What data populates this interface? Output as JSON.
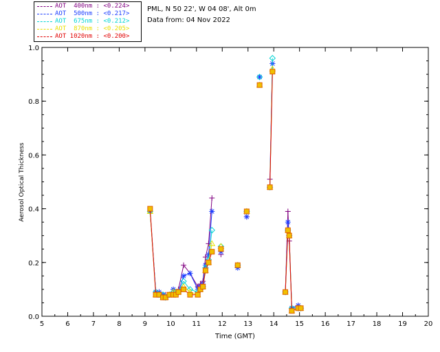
{
  "header": {
    "location": "PML, N 50 22', W 04 08', Alt 0m",
    "date_line": "Data from: 04 Nov 2022"
  },
  "legend": [
    {
      "text": "AOT  400nm : <0.224>",
      "color": "#800080"
    },
    {
      "text": "AOT  500nm : <0.217>",
      "color": "#1a3cff"
    },
    {
      "text": "AOT  675nm : <0.212>",
      "color": "#00d4d4"
    },
    {
      "text": "AOT  870nm : <0.205>",
      "color": "#e8e000"
    },
    {
      "text": "AOT 1020nm : <0.200>",
      "color": "#e00000"
    }
  ],
  "chart_data": {
    "type": "line",
    "xlabel": "Time (GMT)",
    "ylabel": "Aerosol Optical Thickness",
    "xlim": [
      5,
      20
    ],
    "ylim": [
      0,
      1.0
    ],
    "x_ticks": [
      "5",
      "6",
      "7",
      "8",
      "9",
      "10",
      "11",
      "12",
      "13",
      "14",
      "15",
      "16",
      "17",
      "18",
      "19",
      "20"
    ],
    "y_ticks": [
      "0.0",
      "0.2",
      "0.4",
      "0.6",
      "0.8",
      "1.0"
    ],
    "series": [
      {
        "name": "AOT 400nm",
        "color": "#800080",
        "marker": "plus",
        "points": [
          [
            9.2,
            0.39
          ],
          [
            9.42,
            0.09
          ],
          [
            9.55,
            0.09
          ],
          [
            9.7,
            0.08
          ],
          [
            9.8,
            0.08
          ],
          [
            9.95,
            0.08
          ],
          [
            10.1,
            0.1
          ],
          [
            10.2,
            0.09
          ],
          [
            10.3,
            0.1
          ],
          [
            10.5,
            0.19
          ],
          [
            10.75,
            0.16
          ],
          [
            11.05,
            0.11
          ],
          [
            11.15,
            0.12
          ],
          [
            11.25,
            0.13
          ],
          [
            11.35,
            0.22
          ],
          [
            11.47,
            0.27
          ],
          [
            11.6,
            0.44
          ],
          [
            11.95,
            0.23
          ],
          [
            12.6,
            0.19
          ],
          [
            12.95,
            0.37
          ],
          [
            13.45,
            0.89
          ],
          [
            13.85,
            0.51
          ],
          [
            13.95,
            0.94
          ],
          [
            14.45,
            0.09
          ],
          [
            14.55,
            0.39
          ],
          [
            14.6,
            0.28
          ],
          [
            14.7,
            0.03
          ],
          [
            14.95,
            0.04
          ],
          [
            15.05,
            0.03
          ]
        ]
      },
      {
        "name": "AOT 500nm",
        "color": "#1a3cff",
        "marker": "asterisk",
        "points": [
          [
            9.2,
            0.39
          ],
          [
            9.42,
            0.09
          ],
          [
            9.55,
            0.09
          ],
          [
            9.7,
            0.08
          ],
          [
            9.8,
            0.07
          ],
          [
            9.95,
            0.08
          ],
          [
            10.1,
            0.1
          ],
          [
            10.2,
            0.09
          ],
          [
            10.3,
            0.09
          ],
          [
            10.5,
            0.15
          ],
          [
            10.75,
            0.16
          ],
          [
            11.05,
            0.1
          ],
          [
            11.15,
            0.11
          ],
          [
            11.25,
            0.12
          ],
          [
            11.35,
            0.19
          ],
          [
            11.47,
            0.23
          ],
          [
            11.6,
            0.39
          ],
          [
            11.95,
            0.24
          ],
          [
            12.6,
            0.18
          ],
          [
            12.95,
            0.37
          ],
          [
            13.45,
            0.89
          ],
          [
            13.85,
            0.48
          ],
          [
            13.95,
            0.94
          ],
          [
            14.45,
            0.09
          ],
          [
            14.55,
            0.35
          ],
          [
            14.6,
            0.3
          ],
          [
            14.7,
            0.03
          ],
          [
            14.95,
            0.04
          ],
          [
            15.05,
            0.03
          ]
        ]
      },
      {
        "name": "AOT 675nm",
        "color": "#00d4d4",
        "marker": "diamond",
        "points": [
          [
            9.2,
            0.39
          ],
          [
            9.42,
            0.09
          ],
          [
            9.55,
            0.08
          ],
          [
            9.7,
            0.08
          ],
          [
            9.8,
            0.07
          ],
          [
            9.95,
            0.08
          ],
          [
            10.1,
            0.09
          ],
          [
            10.2,
            0.09
          ],
          [
            10.3,
            0.09
          ],
          [
            10.5,
            0.13
          ],
          [
            10.75,
            0.1
          ],
          [
            11.05,
            0.09
          ],
          [
            11.15,
            0.1
          ],
          [
            11.25,
            0.11
          ],
          [
            11.35,
            0.18
          ],
          [
            11.47,
            0.21
          ],
          [
            11.6,
            0.32
          ],
          [
            11.95,
            0.26
          ],
          [
            12.6,
            0.19
          ],
          [
            12.95,
            0.39
          ],
          [
            13.45,
            0.89
          ],
          [
            13.85,
            0.48
          ],
          [
            13.95,
            0.96
          ],
          [
            14.45,
            0.09
          ],
          [
            14.55,
            0.32
          ],
          [
            14.6,
            0.3
          ],
          [
            14.7,
            0.03
          ],
          [
            14.95,
            0.03
          ],
          [
            15.05,
            0.03
          ]
        ]
      },
      {
        "name": "AOT 870nm",
        "color": "#e8e000",
        "marker": "triangle",
        "points": [
          [
            9.2,
            0.39
          ],
          [
            9.42,
            0.08
          ],
          [
            9.55,
            0.08
          ],
          [
            9.7,
            0.07
          ],
          [
            9.8,
            0.07
          ],
          [
            9.95,
            0.08
          ],
          [
            10.1,
            0.09
          ],
          [
            10.2,
            0.09
          ],
          [
            10.3,
            0.09
          ],
          [
            10.5,
            0.11
          ],
          [
            10.75,
            0.09
          ],
          [
            11.05,
            0.08
          ],
          [
            11.15,
            0.1
          ],
          [
            11.25,
            0.11
          ],
          [
            11.35,
            0.17
          ],
          [
            11.47,
            0.2
          ],
          [
            11.6,
            0.27
          ],
          [
            11.95,
            0.26
          ],
          [
            12.6,
            0.19
          ],
          [
            12.95,
            0.39
          ],
          [
            13.45,
            0.86
          ],
          [
            13.85,
            0.48
          ],
          [
            13.95,
            0.92
          ],
          [
            14.45,
            0.09
          ],
          [
            14.55,
            0.32
          ],
          [
            14.6,
            0.3
          ],
          [
            14.7,
            0.02
          ],
          [
            14.95,
            0.03
          ],
          [
            15.05,
            0.03
          ]
        ]
      },
      {
        "name": "AOT 1020nm",
        "color": "#e00000",
        "marker": "square",
        "points": [
          [
            9.2,
            0.4
          ],
          [
            9.42,
            0.08
          ],
          [
            9.55,
            0.08
          ],
          [
            9.7,
            0.07
          ],
          [
            9.8,
            0.07
          ],
          [
            9.95,
            0.08
          ],
          [
            10.1,
            0.08
          ],
          [
            10.2,
            0.08
          ],
          [
            10.3,
            0.09
          ],
          [
            10.5,
            0.1
          ],
          [
            10.75,
            0.08
          ],
          [
            11.05,
            0.08
          ],
          [
            11.15,
            0.1
          ],
          [
            11.25,
            0.11
          ],
          [
            11.35,
            0.17
          ],
          [
            11.47,
            0.2
          ],
          [
            11.6,
            0.24
          ],
          [
            11.95,
            0.25
          ],
          [
            12.6,
            0.19
          ],
          [
            12.95,
            0.39
          ],
          [
            13.45,
            0.86
          ],
          [
            13.85,
            0.48
          ],
          [
            13.95,
            0.91
          ],
          [
            14.45,
            0.09
          ],
          [
            14.55,
            0.32
          ],
          [
            14.6,
            0.3
          ],
          [
            14.7,
            0.02
          ],
          [
            14.95,
            0.03
          ],
          [
            15.05,
            0.03
          ]
        ]
      }
    ]
  }
}
